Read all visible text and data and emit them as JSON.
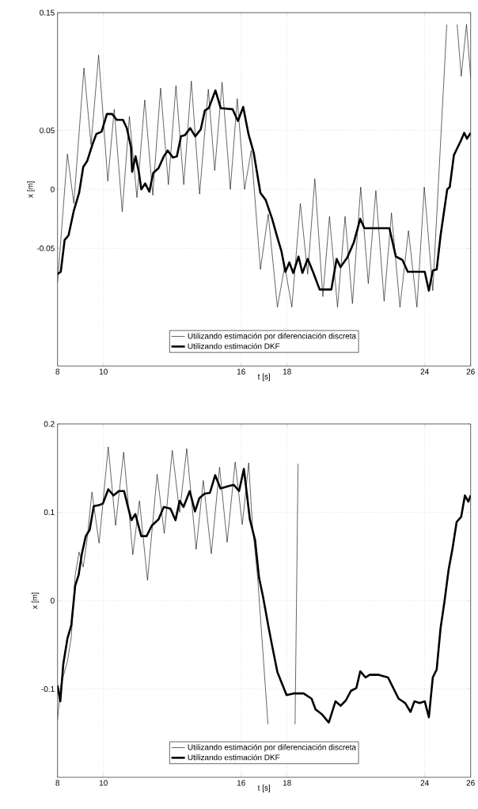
{
  "chart_data": [
    {
      "type": "line",
      "xlabel": "t [s]",
      "ylabel": "x [m]",
      "xlim": [
        8,
        26
      ],
      "ylim": [
        -0.15,
        0.15
      ],
      "xticks": [
        8,
        10,
        16,
        18,
        24,
        26
      ],
      "yticks": [
        -0.05,
        0,
        0.05,
        0.15
      ],
      "grid": true,
      "legend": "bottom",
      "marker": "none",
      "series": [
        {
          "name": "Utilizando estimación por diferenciación discreta",
          "color": "#000000",
          "x": [
            8.0,
            8.43,
            8.71,
            9.15,
            9.46,
            9.79,
            10.19,
            10.47,
            10.82,
            11.13,
            11.46,
            11.8,
            12.15,
            12.49,
            12.83,
            13.16,
            13.5,
            13.83,
            14.19,
            14.57,
            14.85,
            15.17,
            15.53,
            15.83,
            16.15,
            16.44,
            16.84,
            17.18,
            17.58,
            17.9,
            18.21,
            18.58,
            18.9,
            19.21,
            19.56,
            19.85,
            20.2,
            20.53,
            20.85,
            21.21,
            21.54,
            21.87,
            22.23,
            22.55,
            22.92,
            23.29,
            23.66,
            23.98,
            24.35,
            24.96,
            25.18,
            25.41,
            25.59,
            25.82,
            26.0
          ],
          "values": [
            -0.079,
            0.03,
            -0.012,
            0.103,
            0.038,
            0.114,
            0.007,
            0.068,
            -0.019,
            0.062,
            -0.007,
            0.076,
            -0.005,
            0.086,
            0.004,
            0.088,
            0.004,
            0.092,
            -0.004,
            0.085,
            0.016,
            0.091,
            0.0,
            0.077,
            0.0,
            0.033,
            -0.068,
            -0.021,
            -0.1,
            -0.065,
            -0.1,
            -0.012,
            -0.072,
            0.009,
            -0.091,
            -0.023,
            -0.1,
            -0.023,
            -0.097,
            0.002,
            -0.08,
            -0.001,
            -0.095,
            -0.02,
            -0.1,
            -0.035,
            -0.1,
            0.002,
            -0.086,
            0.14,
            null,
            0.14,
            0.096,
            0.14,
            0.095
          ]
        },
        {
          "name": "Utilizando estimación DKF",
          "color": "#000000",
          "x": [
            8.0,
            8.14,
            8.31,
            8.48,
            8.71,
            8.94,
            9.12,
            9.29,
            9.52,
            9.69,
            9.92,
            10.15,
            10.38,
            10.58,
            10.85,
            11.02,
            11.2,
            11.25,
            11.4,
            11.54,
            11.65,
            11.82,
            12.0,
            12.17,
            12.4,
            12.63,
            12.8,
            13.03,
            13.2,
            13.38,
            13.55,
            13.78,
            14.0,
            14.24,
            14.42,
            14.59,
            14.88,
            15.11,
            15.63,
            15.86,
            16.09,
            16.32,
            16.55,
            16.84,
            17.07,
            17.35,
            17.58,
            17.75,
            17.93,
            18.1,
            18.27,
            18.5,
            18.67,
            18.9,
            19.13,
            19.42,
            19.93,
            20.16,
            20.33,
            20.62,
            20.91,
            21.19,
            21.37,
            22.46,
            22.74,
            23.03,
            23.26,
            24.0,
            24.18,
            24.35,
            24.52,
            24.69,
            24.98,
            25.09,
            25.27,
            25.44,
            25.59,
            25.72,
            25.84,
            26.0
          ],
          "values": [
            -0.072,
            -0.07,
            -0.043,
            -0.039,
            -0.018,
            -0.003,
            0.019,
            0.024,
            0.038,
            0.047,
            0.049,
            0.064,
            0.064,
            0.059,
            0.059,
            0.052,
            0.036,
            0.015,
            0.028,
            0.015,
            0.0,
            0.005,
            -0.002,
            0.014,
            0.018,
            0.028,
            0.033,
            0.027,
            0.028,
            0.045,
            0.046,
            0.052,
            0.045,
            0.051,
            0.067,
            0.069,
            0.084,
            0.069,
            0.068,
            0.058,
            0.07,
            0.047,
            0.031,
            -0.003,
            -0.009,
            -0.025,
            -0.041,
            -0.052,
            -0.07,
            -0.062,
            -0.071,
            -0.057,
            -0.071,
            -0.059,
            -0.07,
            -0.085,
            -0.085,
            -0.059,
            -0.066,
            -0.058,
            -0.045,
            -0.025,
            -0.033,
            -0.033,
            -0.057,
            -0.06,
            -0.07,
            -0.07,
            -0.086,
            -0.069,
            -0.068,
            -0.039,
            0.0,
            0.002,
            0.029,
            0.036,
            0.042,
            0.048,
            0.043,
            0.048
          ]
        }
      ]
    },
    {
      "type": "line",
      "xlabel": "t [s]",
      "ylabel": "x [m]",
      "xlim": [
        8,
        26
      ],
      "ylim": [
        -0.2,
        0.2
      ],
      "xticks": [
        8,
        10,
        16,
        18,
        24,
        26
      ],
      "yticks": [
        -0.1,
        0,
        0.1,
        0.2
      ],
      "grid": true,
      "legend": "bottom",
      "marker": "none",
      "series": [
        {
          "name": "Utilizando estimación por diferenciación discreta",
          "color": "#000000",
          "x": [
            8.0,
            8.14,
            8.43,
            8.6,
            8.77,
            8.94,
            9.12,
            9.29,
            9.5,
            9.81,
            10.21,
            10.53,
            10.88,
            11.28,
            11.57,
            11.92,
            12.34,
            12.65,
            13.0,
            13.32,
            13.63,
            14.04,
            14.35,
            14.7,
            15.06,
            15.39,
            15.74,
            16.05,
            16.33,
            16.49,
            16.72,
            17.17,
            17.8,
            18.35,
            18.48
          ],
          "values": [
            -0.135,
            -0.096,
            -0.069,
            -0.041,
            0.029,
            0.055,
            0.038,
            0.07,
            0.123,
            0.065,
            0.174,
            0.085,
            0.168,
            0.052,
            0.113,
            0.023,
            0.143,
            0.076,
            0.17,
            0.1,
            0.172,
            0.058,
            0.136,
            0.053,
            0.151,
            0.066,
            0.157,
            0.086,
            0.156,
            0.086,
            0.026,
            -0.14,
            null,
            -0.14,
            0.155
          ]
        },
        {
          "name": "Utilizando estimación DKF",
          "color": "#000000",
          "x": [
            8.0,
            8.12,
            8.25,
            8.43,
            8.6,
            8.77,
            8.92,
            9.06,
            9.23,
            9.4,
            9.58,
            9.81,
            9.98,
            10.21,
            10.44,
            10.67,
            10.9,
            11.07,
            11.22,
            11.39,
            11.65,
            11.88,
            12.11,
            12.4,
            12.63,
            12.92,
            13.14,
            13.32,
            13.49,
            13.76,
            13.99,
            14.18,
            14.41,
            14.64,
            14.87,
            15.1,
            15.51,
            15.68,
            15.91,
            16.12,
            16.38,
            16.61,
            16.78,
            16.95,
            17.18,
            17.35,
            17.58,
            17.81,
            17.98,
            18.32,
            18.72,
            19.07,
            19.24,
            19.53,
            19.82,
            20.11,
            20.34,
            20.56,
            20.79,
            21.02,
            21.19,
            21.42,
            21.6,
            22.0,
            22.4,
            22.63,
            22.86,
            23.15,
            23.38,
            23.55,
            23.78,
            24.0,
            24.18,
            24.35,
            24.52,
            24.69,
            24.86,
            25.04,
            25.21,
            25.39,
            25.59,
            25.75,
            25.9,
            26.0
          ],
          "values": [
            -0.096,
            -0.114,
            -0.072,
            -0.043,
            -0.028,
            0.017,
            0.029,
            0.053,
            0.073,
            0.08,
            0.107,
            0.108,
            0.11,
            0.126,
            0.119,
            0.124,
            0.124,
            0.106,
            0.091,
            0.098,
            0.073,
            0.073,
            0.085,
            0.092,
            0.106,
            0.104,
            0.091,
            0.113,
            0.106,
            0.124,
            0.101,
            0.116,
            0.121,
            0.122,
            0.142,
            0.127,
            0.13,
            0.131,
            0.124,
            0.149,
            0.092,
            0.068,
            0.026,
            0.005,
            -0.028,
            -0.051,
            -0.081,
            -0.096,
            -0.107,
            -0.105,
            -0.105,
            -0.111,
            -0.123,
            -0.129,
            -0.138,
            -0.114,
            -0.119,
            -0.113,
            -0.102,
            -0.099,
            -0.08,
            -0.087,
            -0.084,
            -0.084,
            -0.087,
            -0.099,
            -0.111,
            -0.116,
            -0.126,
            -0.114,
            -0.116,
            -0.114,
            -0.132,
            -0.087,
            -0.078,
            -0.031,
            -0.001,
            0.035,
            0.059,
            0.089,
            0.095,
            0.119,
            0.112,
            0.119
          ]
        }
      ]
    }
  ]
}
